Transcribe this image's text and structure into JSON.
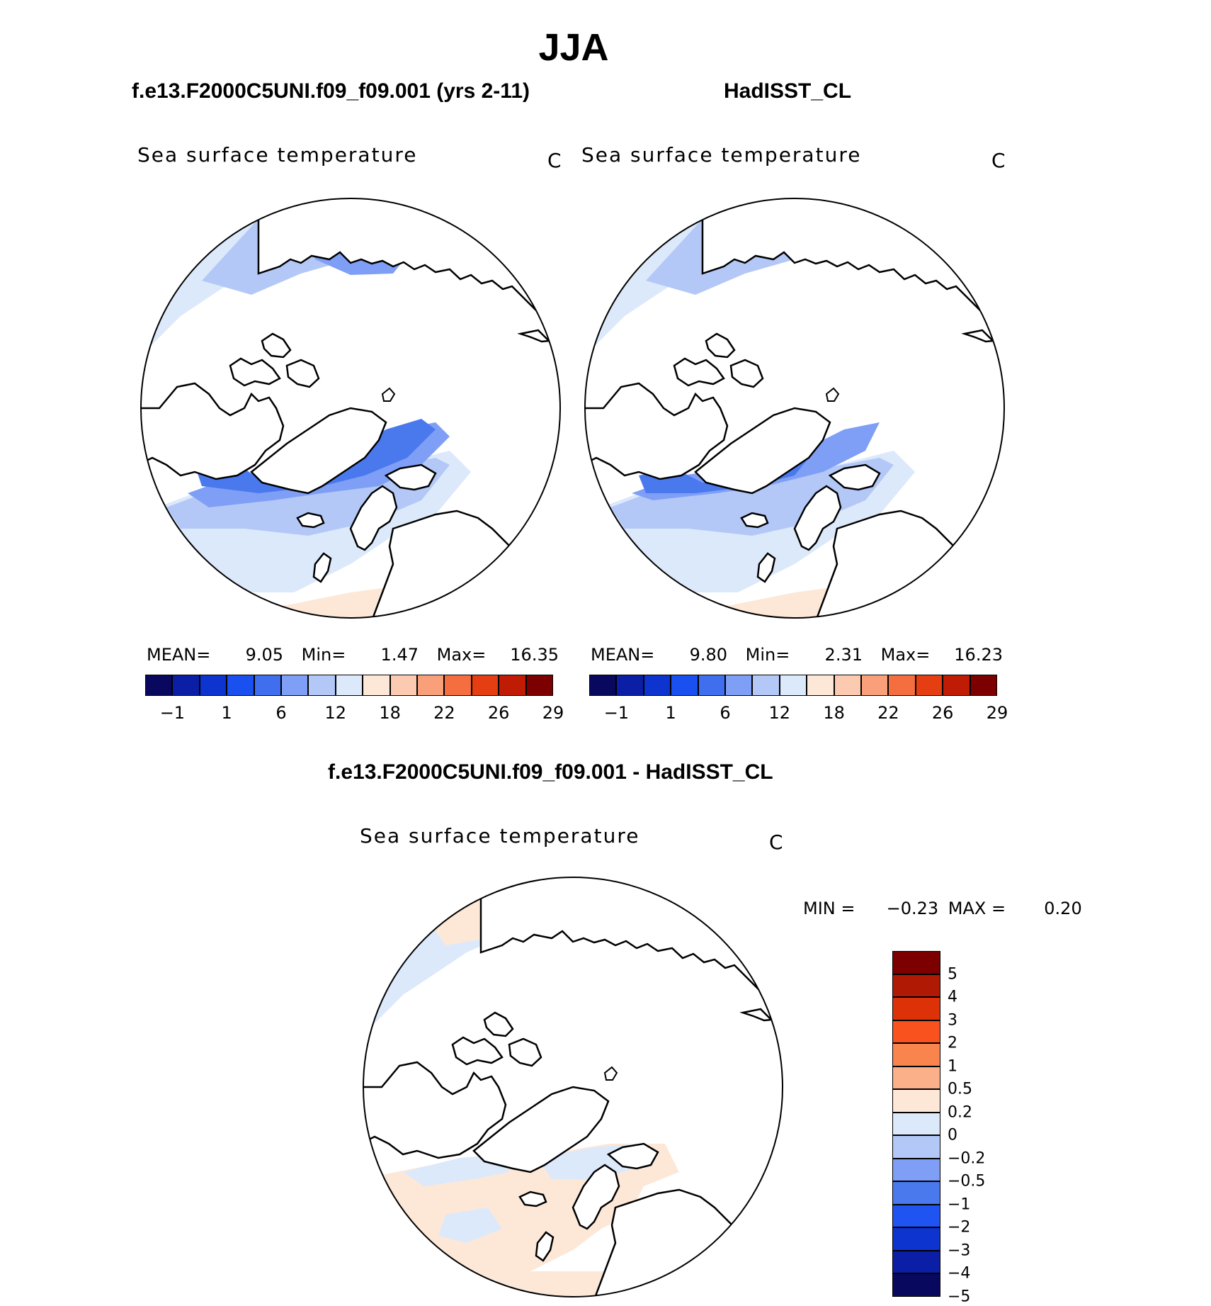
{
  "figure": {
    "season": "JJA",
    "left_title": "f.e13.F2000C5UNI.f09_f09.001 (yrs 2-11)",
    "right_title": "HadISST_CL",
    "diff_title": "f.e13.F2000C5UNI.f09_f09.001 - HadISST_CL"
  },
  "panels": {
    "left": {
      "variable": "Sea surface temperature",
      "units": "C",
      "mean_label": "MEAN=",
      "mean": "9.05",
      "min_label": "Min=",
      "min": "1.47",
      "max_label": "Max=",
      "max": "16.35"
    },
    "right": {
      "variable": "Sea surface temperature",
      "units": "C",
      "mean_label": "MEAN=",
      "mean": "9.80",
      "min_label": "Min=",
      "min": "2.31",
      "max_label": "Max=",
      "max": "16.23"
    },
    "diff": {
      "variable": "Sea surface temperature",
      "units": "C",
      "min_label": "MIN =",
      "min": "−0.23",
      "max_label": "MAX =",
      "max": "0.20"
    }
  },
  "colorbars": {
    "abs": {
      "colors": [
        "#08085e",
        "#0a1fa6",
        "#0d34cf",
        "#1a4ff0",
        "#3f6fee",
        "#7f9ff6",
        "#b3c8f7",
        "#dce9fb",
        "#fde8d8",
        "#fccab0",
        "#f9a07a",
        "#f56e40",
        "#e43e12",
        "#c01c05",
        "#7d0000"
      ],
      "labels": [
        "−1",
        "1",
        "6",
        "12",
        "18",
        "22",
        "26",
        "29"
      ]
    },
    "diff": {
      "colors_top_to_bottom": [
        "#7d0000",
        "#b01a05",
        "#dd3208",
        "#f9521e",
        "#f9844e",
        "#fbb08a",
        "#fde8d8",
        "#dce9fb",
        "#b3c8f7",
        "#7f9ff6",
        "#4a79ee",
        "#1f53f2",
        "#0d34cf",
        "#0a1fa6",
        "#08085e"
      ],
      "labels_top_to_bottom": [
        "5",
        "4",
        "3",
        "2",
        "1",
        "0.5",
        "0.2",
        "0",
        "−0.2",
        "−0.5",
        "−1",
        "−2",
        "−3",
        "−4",
        "−5"
      ]
    }
  },
  "chart_data": {
    "type": "heatmap",
    "title": "JJA",
    "description_fields": [
      "Sea surface temperature (C)"
    ],
    "panels": [
      {
        "name": "f.e13.F2000C5UNI.f09_f09.001 (yrs 2-11)",
        "mean": 9.05,
        "min": 1.47,
        "max": 16.35
      },
      {
        "name": "HadISST_CL",
        "mean": 9.8,
        "min": 2.31,
        "max": 16.23
      },
      {
        "name": "f.e13.F2000C5UNI.f09_f09.001 - HadISST_CL",
        "min": -0.23,
        "max": 0.2
      }
    ],
    "abs_levels": [
      -1,
      1,
      6,
      12,
      18,
      22,
      26,
      29
    ],
    "diff_levels": [
      -5,
      -4,
      -3,
      -2,
      -1,
      -0.5,
      -0.2,
      0,
      0.2,
      0.5,
      1,
      2,
      3,
      4,
      5
    ]
  }
}
